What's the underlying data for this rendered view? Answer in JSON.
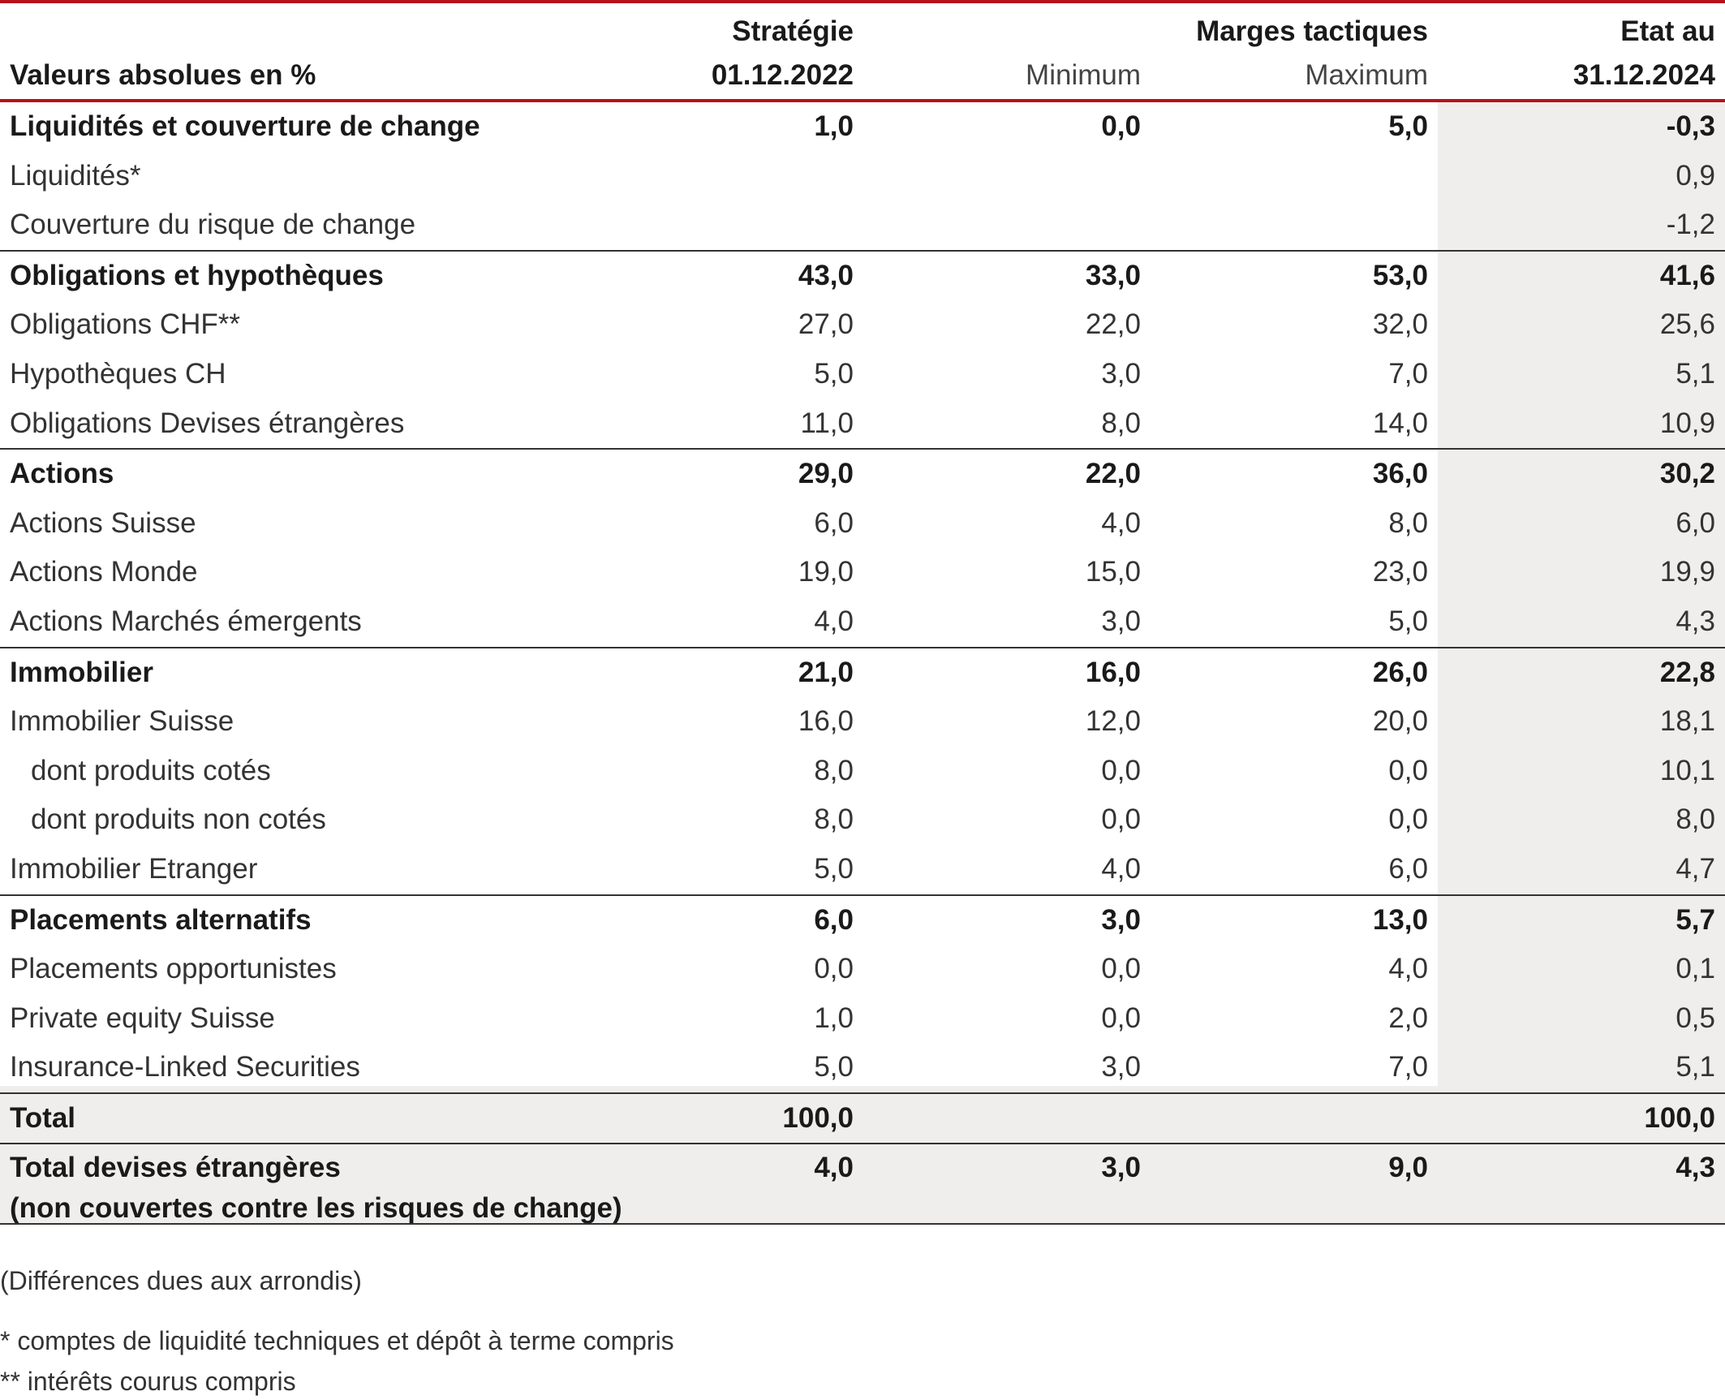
{
  "header": {
    "label_col": "Valeurs absolues en %",
    "strategy_line1": "Stratégie",
    "strategy_line2": "01.12.2022",
    "margins_title": "Marges tactiques",
    "minimum": "Minimum",
    "maximum": "Maximum",
    "state_line1": "Etat au",
    "state_line2": "31.12.2024"
  },
  "rows": [
    {
      "label": "Liquidités et couverture de change",
      "strategy": "1,0",
      "min": "0,0",
      "max": "5,0",
      "state": "-0,3",
      "bold": true
    },
    {
      "label": "Liquidités*",
      "strategy": "",
      "min": "",
      "max": "",
      "state": "0,9",
      "bold": false
    },
    {
      "label": "Couverture du risque de change",
      "strategy": "",
      "min": "",
      "max": "",
      "state": "-1,2",
      "bold": false
    },
    {
      "label": "Obligations et hypothèques",
      "strategy": "43,0",
      "min": "33,0",
      "max": "53,0",
      "state": "41,6",
      "bold": true
    },
    {
      "label": "Obligations CHF**",
      "strategy": "27,0",
      "min": "22,0",
      "max": "32,0",
      "state": "25,6",
      "bold": false
    },
    {
      "label": "Hypothèques CH",
      "strategy": "5,0",
      "min": "3,0",
      "max": "7,0",
      "state": "5,1",
      "bold": false
    },
    {
      "label": "Obligations Devises étrangères",
      "strategy": "11,0",
      "min": "8,0",
      "max": "14,0",
      "state": "10,9",
      "bold": false
    },
    {
      "label": "Actions",
      "strategy": "29,0",
      "min": "22,0",
      "max": "36,0",
      "state": "30,2",
      "bold": true
    },
    {
      "label": "Actions Suisse",
      "strategy": "6,0",
      "min": "4,0",
      "max": "8,0",
      "state": "6,0",
      "bold": false
    },
    {
      "label": "Actions Monde",
      "strategy": "19,0",
      "min": "15,0",
      "max": "23,0",
      "state": "19,9",
      "bold": false
    },
    {
      "label": "Actions Marchés émergents",
      "strategy": "4,0",
      "min": "3,0",
      "max": "5,0",
      "state": "4,3",
      "bold": false
    },
    {
      "label": "Immobilier",
      "strategy": "21,0",
      "min": "16,0",
      "max": "26,0",
      "state": "22,8",
      "bold": true
    },
    {
      "label": "Immobilier Suisse",
      "strategy": "16,0",
      "min": "12,0",
      "max": "20,0",
      "state": "18,1",
      "bold": false
    },
    {
      "label": "dont produits cotés",
      "strategy": "8,0",
      "min": "0,0",
      "max": "0,0",
      "state": "10,1",
      "bold": false
    },
    {
      "label": "dont produits non cotés",
      "strategy": "8,0",
      "min": "0,0",
      "max": "0,0",
      "state": "8,0",
      "bold": false
    },
    {
      "label": "Immobilier Etranger",
      "strategy": "5,0",
      "min": "4,0",
      "max": "6,0",
      "state": "4,7",
      "bold": false
    },
    {
      "label": "Placements alternatifs",
      "strategy": "6,0",
      "min": "3,0",
      "max": "13,0",
      "state": "5,7",
      "bold": true
    },
    {
      "label": "Placements opportunistes",
      "strategy": "0,0",
      "min": "0,0",
      "max": "4,0",
      "state": "0,1",
      "bold": false
    },
    {
      "label": "Private equity Suisse",
      "strategy": "1,0",
      "min": "0,0",
      "max": "2,0",
      "state": "0,5",
      "bold": false
    },
    {
      "label": "Insurance-Linked Securities",
      "strategy": "5,0",
      "min": "3,0",
      "max": "7,0",
      "state": "5,1",
      "bold": false
    },
    {
      "label": "Total",
      "strategy": "100,0",
      "min": "",
      "max": "",
      "state": "100,0",
      "bold": true
    },
    {
      "label": "Total devises étrangères",
      "label_line2": "(non couvertes contre les risques de change)",
      "strategy": "4,0",
      "min": "3,0",
      "max": "9,0",
      "state": "4,3",
      "bold": true
    }
  ],
  "notes": {
    "rounding": "(Différences dues aux arrondis)",
    "note1": "* comptes de liquidité techniques et dépôt à terme compris",
    "note2": "** intérêts courus compris"
  },
  "colors": {
    "accent_red": "#b5121b",
    "shade": "#efeeed"
  }
}
